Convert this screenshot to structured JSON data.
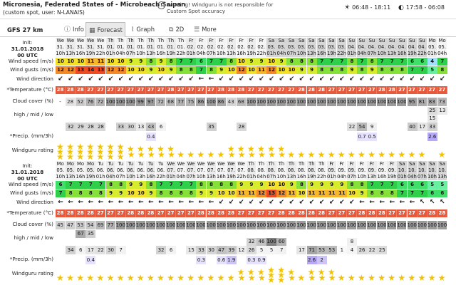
{
  "header": {
    "title": "Micronesia, Federated States of - Microbeach Saipan",
    "subtitle": "(custom spot, user: N-LANAIS)",
    "warning": "Warning! Windguru is not responsible for Custom Spot accuracy",
    "sun": "06:48 - 18:11",
    "moon": "17:58 - 06:08",
    "sun_icon": "sun-icon",
    "moon_icon": "moon-icon",
    "warning_icon": "warning-icon"
  },
  "tabs": {
    "model": "GFS 27 km",
    "items": [
      {
        "label": "Info",
        "icon": "info-icon",
        "glyph": "ⓘ"
      },
      {
        "label": "Forecast",
        "icon": "table-icon",
        "glyph": "▦"
      },
      {
        "label": "Graph",
        "icon": "graph-icon",
        "glyph": "📈"
      },
      {
        "label": "2D",
        "icon": "2d-icon",
        "glyph": "⧉"
      },
      {
        "label": "More",
        "icon": "more-icon",
        "glyph": "☰"
      }
    ]
  },
  "labels": {
    "init": "Init:",
    "init_date": "31.01.2018",
    "init_time": "00 UTC",
    "wind_speed": "Wind speed (m/s)",
    "wind_gusts": "Wind gusts (m/s)",
    "wind_dir": "Wind direction",
    "temp": "*Temperature (°C)",
    "cloud": "Cloud cover (%)",
    "hml": "high / mid / low",
    "precip": "*Precip. (mm/3h)",
    "rating": "Windguru rating"
  },
  "table1": {
    "day": [
      "We",
      "We",
      "We",
      "We",
      "We",
      "Th",
      "Th",
      "Th",
      "Th",
      "Th",
      "Th",
      "Th",
      "Th",
      "Fr",
      "Fr",
      "Fr",
      "Fr",
      "Fr",
      "Fr",
      "Fr",
      "Fr",
      "Sa",
      "Sa",
      "Sa",
      "Sa",
      "Sa",
      "Sa",
      "Sa",
      "Sa",
      "Su",
      "Su",
      "Su",
      "Su",
      "Su",
      "Su",
      "Su",
      "Su",
      "Mo",
      "Mo"
    ],
    "date": [
      "31.",
      "31.",
      "31.",
      "31.",
      "31.",
      "01.",
      "01.",
      "01.",
      "01.",
      "01.",
      "01.",
      "01.",
      "01.",
      "02.",
      "02.",
      "02.",
      "02.",
      "02.",
      "02.",
      "02.",
      "02.",
      "03.",
      "03.",
      "03.",
      "03.",
      "03.",
      "03.",
      "03.",
      "03.",
      "04.",
      "04.",
      "04.",
      "04.",
      "04.",
      "04.",
      "04.",
      "04.",
      "05.",
      "05."
    ],
    "hour": [
      "10h",
      "13h",
      "16h",
      "19h",
      "22h",
      "01h",
      "04h",
      "07h",
      "10h",
      "13h",
      "16h",
      "19h",
      "22h",
      "01h",
      "04h",
      "07h",
      "10h",
      "13h",
      "16h",
      "19h",
      "22h",
      "01h",
      "04h",
      "07h",
      "10h",
      "13h",
      "16h",
      "19h",
      "22h",
      "01h",
      "04h",
      "07h",
      "10h",
      "13h",
      "16h",
      "19h",
      "22h",
      "01h",
      "04h"
    ],
    "speed": [
      "10",
      "10",
      "10",
      "11",
      "11",
      "10",
      "10",
      "9",
      "9",
      "8",
      "9",
      "8",
      "7",
      "7",
      "6",
      "7",
      "7",
      "8",
      "10",
      "9",
      "9",
      "10",
      "9",
      "8",
      "8",
      "8",
      "7",
      "7",
      "7",
      "8",
      "7",
      "8",
      "7",
      "7",
      "7",
      "6",
      "6",
      "4",
      "7"
    ],
    "gusts": [
      "12",
      "12",
      "13",
      "14",
      "13",
      "12",
      "12",
      "10",
      "10",
      "9",
      "10",
      "9",
      "8",
      "8",
      "7",
      "8",
      "9",
      "10",
      "12",
      "10",
      "11",
      "12",
      "10",
      "10",
      "9",
      "9",
      "8",
      "8",
      "8",
      "9",
      "8",
      "9",
      "8",
      "8",
      "8",
      "7",
      "7",
      "5",
      "8"
    ],
    "dir": [
      "↙",
      "↙",
      "↙",
      "↙",
      "↙",
      "↙",
      "↙",
      "↙",
      "↙",
      "↙",
      "↙",
      "↙",
      "↙",
      "↙",
      "←",
      "←",
      "↙",
      "↙",
      "↙",
      "↙",
      "↙",
      "↙",
      "↙",
      "↙",
      "↙",
      "↙",
      "↙",
      "↙",
      "↙",
      "↙",
      "↙",
      "↙",
      "↙",
      "↙",
      "↙",
      "↙",
      "↙",
      "↙",
      "↙"
    ],
    "temp": [
      "28",
      "28",
      "28",
      "27",
      "27",
      "27",
      "27",
      "27",
      "27",
      "27",
      "27",
      "28",
      "27",
      "27",
      "27",
      "27",
      "28",
      "28",
      "28",
      "27",
      "27",
      "27",
      "27",
      "27",
      "28",
      "28",
      "28",
      "27",
      "27",
      "27",
      "27",
      "27",
      "28",
      "28",
      "27",
      "27",
      "27",
      "27",
      "27"
    ],
    "cloud": [
      "-",
      "28",
      "52",
      "76",
      "72",
      "100",
      "100",
      "100",
      "99",
      "97",
      "72",
      "68",
      "77",
      "75",
      "86",
      "100",
      "86",
      "43",
      "68",
      "100",
      "100",
      "100",
      "100",
      "100",
      "100",
      "100",
      "100",
      "100",
      "100",
      "100",
      "100",
      "100",
      "100",
      "100",
      "100",
      "95",
      "81",
      "83",
      "73"
    ],
    "high": [
      "",
      "",
      "",
      "",
      "",
      "",
      "",
      "",
      "",
      "",
      "",
      "",
      "",
      "",
      "",
      "",
      "",
      "",
      "",
      "",
      "",
      "",
      "",
      "",
      "",
      "",
      "",
      "",
      "",
      "",
      "",
      "",
      "",
      "",
      "",
      "",
      "",
      "25",
      "13"
    ],
    "mid": [
      "",
      "",
      "",
      "",
      "",
      "",
      "",
      "",
      "",
      "",
      "",
      "",
      "",
      "",
      "",
      "",
      "",
      "",
      "",
      "",
      "",
      "",
      "",
      "",
      "",
      "",
      "",
      "",
      "",
      "",
      "",
      "",
      "",
      "",
      "",
      "",
      "",
      "15",
      ""
    ],
    "low": [
      "",
      "32",
      "29",
      "28",
      "28",
      "",
      "33",
      "30",
      "13",
      "43",
      "6",
      "",
      "",
      "",
      "",
      "35",
      "",
      "",
      "28",
      "",
      "",
      "",
      "",
      "",
      "",
      "",
      "",
      "",
      "",
      "22",
      "54",
      "9",
      "",
      "",
      "",
      "40",
      "17",
      "33",
      ""
    ],
    "precip": [
      "",
      "",
      "",
      "",
      "",
      "",
      "",
      "",
      "",
      "0.4",
      "",
      "",
      "",
      "",
      "",
      "",
      "",
      "",
      "",
      "",
      "",
      "",
      "",
      "",
      "",
      "",
      "",
      "",
      "",
      "",
      "0.7",
      "0.5",
      "",
      "",
      "",
      "",
      "",
      "2.6",
      ""
    ],
    "rating": [
      3,
      3,
      3,
      3,
      3,
      3,
      3,
      2,
      2,
      2,
      2,
      2,
      1,
      1,
      1,
      1,
      1,
      2,
      2,
      2,
      2,
      2,
      2,
      1,
      1,
      1,
      1,
      1,
      1,
      1,
      1,
      1,
      1,
      1,
      1,
      1,
      1,
      0,
      1
    ]
  },
  "table2": {
    "day": [
      "Mo",
      "Mo",
      "Mo",
      "Mo",
      "Tu",
      "Tu",
      "Tu",
      "Tu",
      "Tu",
      "Tu",
      "Tu",
      "We",
      "We",
      "We",
      "We",
      "We",
      "We",
      "We",
      "We",
      "Th",
      "Th",
      "Th",
      "Th",
      "Th",
      "Th",
      "Th",
      "Th",
      "Fr",
      "Fr",
      "Fr",
      "Fr",
      "Fr",
      "Fr",
      "Fr",
      "Sa",
      "Sa",
      "Sa",
      "Sa",
      "Sa"
    ],
    "date": [
      "05.",
      "05.",
      "05.",
      "05.",
      "06.",
      "06.",
      "06.",
      "06.",
      "06.",
      "06.",
      "06.",
      "07.",
      "07.",
      "07.",
      "07.",
      "07.",
      "07.",
      "07.",
      "07.",
      "08.",
      "08.",
      "08.",
      "08.",
      "08.",
      "08.",
      "08.",
      "08.",
      "09.",
      "09.",
      "09.",
      "09.",
      "09.",
      "09.",
      "09.",
      "10.",
      "10.",
      "10.",
      "10.",
      "10."
    ],
    "hour": [
      "10h",
      "13h",
      "16h",
      "19h",
      "01h",
      "04h",
      "07h",
      "10h",
      "13h",
      "16h",
      "22h",
      "01h",
      "04h",
      "07h",
      "10h",
      "13h",
      "16h",
      "19h",
      "22h",
      "01h",
      "04h",
      "07h",
      "10h",
      "13h",
      "16h",
      "19h",
      "22h",
      "01h",
      "04h",
      "07h",
      "10h",
      "13h",
      "16h",
      "19h",
      "01h",
      "04h",
      "07h",
      "10h",
      "13h"
    ],
    "speed": [
      "6",
      "7",
      "7",
      "7",
      "7",
      "8",
      "8",
      "9",
      "9",
      "8",
      "7",
      "7",
      "7",
      "7",
      "8",
      "8",
      "8",
      "8",
      "9",
      "9",
      "9",
      "10",
      "10",
      "9",
      "8",
      "9",
      "9",
      "9",
      "9",
      "8",
      "8",
      "7",
      "7",
      "7",
      "6",
      "6",
      "6",
      "5",
      "5"
    ],
    "gusts": [
      "7",
      "8",
      "8",
      "8",
      "8",
      "9",
      "9",
      "10",
      "10",
      "9",
      "8",
      "8",
      "8",
      "8",
      "9",
      "9",
      "10",
      "10",
      "11",
      "11",
      "12",
      "13",
      "12",
      "11",
      "10",
      "11",
      "11",
      "11",
      "11",
      "10",
      "9",
      "8",
      "8",
      "8",
      "7",
      "7",
      "7",
      "6",
      "6"
    ],
    "dir": [
      "←",
      "←",
      "←",
      "←",
      "←",
      "←",
      "←",
      "←",
      "←",
      "←",
      "←",
      "←",
      "←",
      "←",
      "←",
      "←",
      "↙",
      "↙",
      "↙",
      "↙",
      "↙",
      "↙",
      "↙",
      "↙",
      "↙",
      "↙",
      "↙",
      "↙",
      "↙",
      "↙",
      "←",
      "←",
      "←",
      "←",
      "←",
      "←",
      "↖",
      "↖",
      "↖"
    ],
    "temp": [
      "28",
      "28",
      "28",
      "28",
      "27",
      "27",
      "27",
      "28",
      "28",
      "28",
      "27",
      "27",
      "27",
      "27",
      "28",
      "28",
      "28",
      "28",
      "27",
      "27",
      "27",
      "27",
      "28",
      "28",
      "28",
      "28",
      "28",
      "27",
      "27",
      "27",
      "28",
      "28",
      "28",
      "27",
      "27",
      "27",
      "27",
      "28",
      "28"
    ],
    "cloud": [
      "45",
      "47",
      "53",
      "54",
      "69",
      "77",
      "100",
      "100",
      "100",
      "100",
      "100",
      "100",
      "100",
      "100",
      "100",
      "100",
      "100",
      "100",
      "100",
      "100",
      "100",
      "100",
      "100",
      "100",
      "100",
      "100",
      "100",
      "100",
      "100",
      "100",
      "100",
      "100",
      "100",
      "100",
      "100",
      "100",
      "100",
      "100",
      "100"
    ],
    "high": [
      "",
      "",
      "67",
      "35",
      "",
      "",
      "",
      "",
      "",
      "",
      "",
      "",
      "",
      "",
      "",
      "",
      "",
      "",
      "",
      "",
      "",
      "",
      "",
      "",
      "",
      "",
      "",
      "",
      "",
      "",
      "",
      "",
      "",
      "",
      "",
      "",
      "",
      "",
      ""
    ],
    "mid": [
      "",
      "",
      "",
      "",
      "",
      "",
      "",
      "",
      "",
      "",
      "",
      "",
      "",
      "",
      "",
      "",
      "",
      "",
      "",
      "32",
      "46",
      "100",
      "60",
      "",
      "",
      "",
      "",
      "",
      "",
      "8",
      "",
      "",
      "",
      "",
      "",
      "",
      "",
      "",
      ""
    ],
    "low": [
      "",
      "34",
      "6",
      "17",
      "22",
      "30",
      "7",
      "",
      "",
      "",
      "32",
      "6",
      "",
      "15",
      "33",
      "30",
      "47",
      "39",
      "12",
      "26",
      "5",
      "5",
      "7",
      "",
      "17",
      "71",
      "53",
      "53",
      "1",
      "4",
      "26",
      "22",
      "25",
      "",
      "",
      "",
      "",
      "",
      ""
    ],
    "precip": [
      "",
      "",
      "",
      "0.4",
      "",
      "",
      "",
      "",
      "",
      "",
      "",
      "",
      "",
      "",
      "0.3",
      "",
      "0.6",
      "1.9",
      "",
      "0.3",
      "0.9",
      "",
      "",
      "",
      "",
      "2.6",
      "2",
      "",
      "",
      "",
      "",
      "",
      "",
      "",
      "",
      "",
      "",
      "",
      ""
    ],
    "rating": [
      1,
      1,
      1,
      1,
      1,
      1,
      1,
      1,
      1,
      1,
      1,
      1,
      1,
      1,
      1,
      1,
      1,
      1,
      2,
      2,
      2,
      3,
      3,
      2,
      1,
      2,
      2,
      2,
      1,
      1,
      1,
      1,
      1,
      1,
      1,
      1,
      1,
      1,
      1
    ]
  },
  "colors": {
    "accent": "#2a6db5",
    "temp": "#e8593c",
    "cloud_full": "#9a9a9a"
  }
}
